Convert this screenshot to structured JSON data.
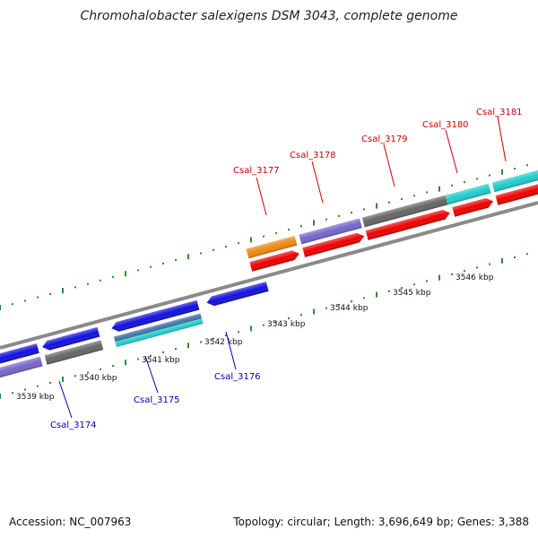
{
  "title": "Chromohalobacter salexigens DSM 3043, complete genome",
  "footer": {
    "accession": "Accession: NC_007963",
    "summary": "Topology: circular; Length: 3,696,649 bp; Genes: 3,388"
  },
  "colors": {
    "backbone": "#8a8a8a",
    "tick": "#2e8b2e",
    "forward_label": "#cc0000",
    "reverse_label": "#0000aa",
    "cds_forward": "#ee0000",
    "cds_reverse": "#1111dd",
    "purple": "#7766cc",
    "gray": "#666666",
    "orange": "#ee8811",
    "cyan": "#22cccc",
    "steel": "#4477aa"
  },
  "kbp_labels": [
    "3539 kbp",
    "3540 kbp",
    "3541 kbp",
    "3542 kbp",
    "3543 kbp",
    "3544 kbp",
    "3545 kbp",
    "3546 kbp"
  ],
  "forward_genes": [
    "Csal_3177",
    "Csal_3178",
    "Csal_3179",
    "Csal_3180",
    "Csal_3181"
  ],
  "reverse_genes": [
    "Csal_3174",
    "Csal_3175",
    "Csal_3176"
  ]
}
